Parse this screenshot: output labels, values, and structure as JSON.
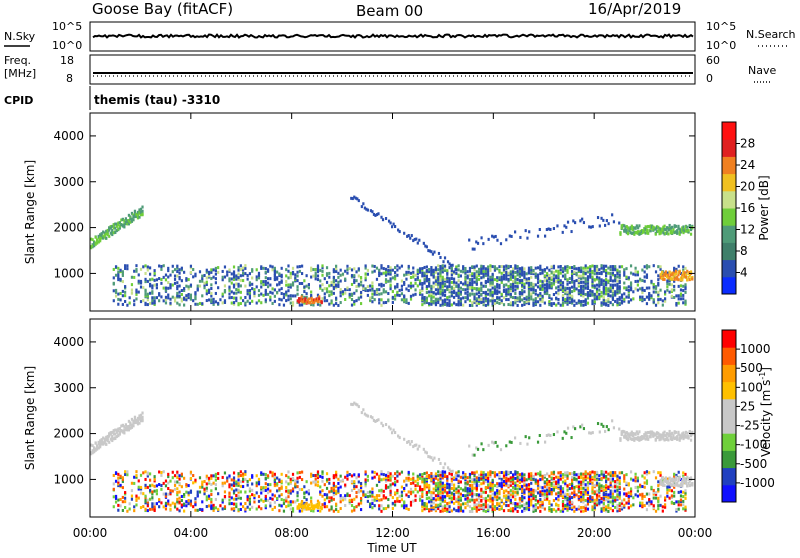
{
  "header": {
    "station": "Goose Bay (fitACF)",
    "beam": "Beam 00",
    "date": "16/Apr/2019"
  },
  "top_panels": {
    "nsky_label": "N.Sky",
    "nsearch_label": "N.Search",
    "noise_ticks": [
      "10^5",
      "10^0"
    ],
    "freq_label_1": "Freq.",
    "freq_label_2": "[MHz]",
    "freq_ticks": [
      "18",
      "8"
    ],
    "nave_label": "Nave",
    "nave_ticks": [
      "60",
      "0"
    ],
    "cpid_label": "CPID",
    "cpid_text": "themis (tau) -3310"
  },
  "colors": {
    "power_scale": [
      "#0a2cff",
      "#2a4eb0",
      "#3f7f6a",
      "#4f9b78",
      "#6fce3a",
      "#c8e08a",
      "#f0c020",
      "#f08020",
      "#e02020",
      "#ff1010"
    ],
    "velocity_scale": [
      "#ff0000",
      "#ff5a00",
      "#ff9c00",
      "#ffc000",
      "#c8c8c8",
      "#c8c8c8",
      "#6fd03a",
      "#3a9a3a",
      "#2040c0",
      "#1010ff"
    ]
  },
  "chart_data": [
    {
      "type": "heatmap",
      "name": "power",
      "ylabel": "Slant Range [km]",
      "ylim": [
        180,
        4500
      ],
      "y_ticks": [
        1000,
        2000,
        3000,
        4000
      ],
      "x_ticks": [
        "00:00",
        "04:00",
        "08:00",
        "12:00",
        "16:00",
        "20:00",
        "00:00"
      ],
      "xlim_hours": [
        0,
        24
      ],
      "colorbar": {
        "label": "Power [dB]",
        "range": [
          0,
          30
        ],
        "ticks": [
          "4",
          "8",
          "12",
          "16",
          "20",
          "24",
          "28"
        ]
      }
    },
    {
      "type": "heatmap",
      "name": "velocity",
      "ylabel": "Slant Range [km]",
      "ylim": [
        180,
        4500
      ],
      "y_ticks": [
        1000,
        2000,
        3000,
        4000
      ],
      "x_ticks": [
        "00:00",
        "04:00",
        "08:00",
        "12:00",
        "16:00",
        "20:00",
        "00:00"
      ],
      "xlim_hours": [
        0,
        24
      ],
      "xlabel": "Time UT",
      "colorbar": {
        "label": "Velocity [m s",
        "label_sup": "-1",
        "label_end": "]",
        "ticks": [
          "1000",
          "500",
          "100",
          "25",
          "-25",
          "-100",
          "-500",
          "-1000"
        ]
      }
    }
  ]
}
